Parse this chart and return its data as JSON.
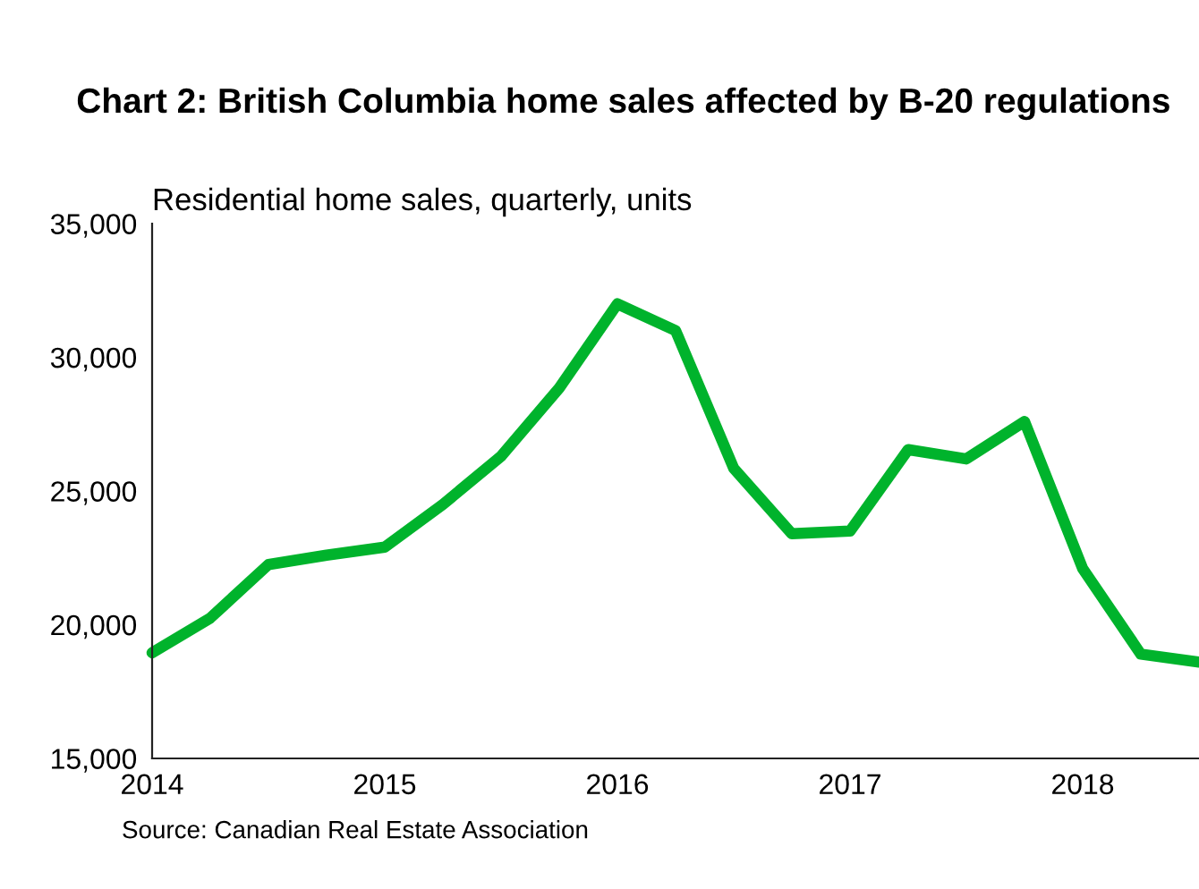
{
  "chart_data": {
    "type": "line",
    "title": "Chart 2: British Columbia home sales affected by B-20 regulations",
    "ylabel": "Residential home sales, quarterly, units",
    "x": [
      2014,
      2014.25,
      2014.5,
      2014.75,
      2015,
      2015.25,
      2015.5,
      2015.75,
      2016,
      2016.25,
      2016.5,
      2016.75,
      2017,
      2017.25,
      2017.5,
      2017.75,
      2018,
      2018.25,
      2018.5
    ],
    "series": [
      {
        "color": "#00b32c",
        "values": [
          18950,
          20250,
          22250,
          22600,
          22900,
          24500,
          26300,
          28850,
          32000,
          31000,
          25850,
          23400,
          23500,
          26550,
          26200,
          27600,
          22100,
          18900,
          18600
        ]
      }
    ],
    "xlim": [
      2014,
      2018.5
    ],
    "xticks": [
      2014,
      2015,
      2016,
      2017,
      2018
    ],
    "ylim": [
      15000,
      35000
    ],
    "yticks": [
      {
        "value": 15000,
        "label": "15,000"
      },
      {
        "value": 20000,
        "label": "20,000"
      },
      {
        "value": 25000,
        "label": "25,000"
      },
      {
        "value": 30000,
        "label": "30,000"
      },
      {
        "value": 35000,
        "label": "35,000"
      }
    ],
    "grid": false,
    "legend": false,
    "marker": "none",
    "line_style": "solid",
    "annotations": [
      "Source: Canadian Real Estate Association"
    ]
  }
}
